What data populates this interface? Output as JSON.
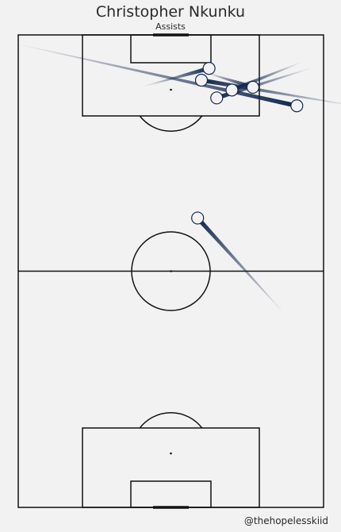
{
  "header": {
    "title": "Christopher Nkunku",
    "subtitle": "Assists"
  },
  "footer": {
    "credit": "@thehopelesskiid"
  },
  "colors": {
    "background": "#f2f2f2",
    "pitch_lines": "#111111",
    "pass_line": "#10264d",
    "marker_fill": "#f2f2f2",
    "marker_stroke": "#10264d"
  },
  "chart_data": {
    "type": "scatter",
    "title": "Christopher Nkunku",
    "subtitle": "Assists",
    "pitch": {
      "length": 120,
      "width": 80,
      "orientation": "vertical",
      "attacking_direction": "up"
    },
    "passes": [
      {
        "start": [
          102.0,
          73.0
        ],
        "end": [
          117.5,
          0.5
        ]
      },
      {
        "start": [
          111.5,
          50.0
        ],
        "end": [
          107.0,
          33.0
        ]
      },
      {
        "start": [
          106.0,
          56.0
        ],
        "end": [
          113.0,
          74.0
        ]
      },
      {
        "start": [
          106.7,
          61.5
        ],
        "end": [
          110.5,
          49.0
        ]
      },
      {
        "start": [
          108.5,
          48.0
        ],
        "end": [
          102.0,
          88.0
        ]
      },
      {
        "start": [
          104.0,
          52.0
        ],
        "end": [
          111.5,
          76.5
        ]
      },
      {
        "start": [
          73.5,
          47.0
        ],
        "end": [
          50.0,
          69.0
        ]
      }
    ]
  }
}
